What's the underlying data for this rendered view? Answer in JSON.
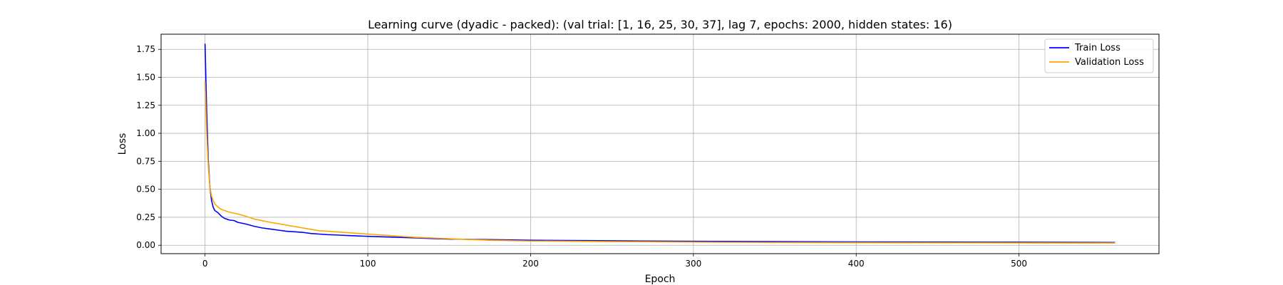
{
  "chart_data": {
    "type": "line",
    "title": "Learning curve (dyadic - packed): (val trial: [1, 16, 25, 30, 37], lag 7, epochs: 2000, hidden states: 16)",
    "xlabel": "Epoch",
    "ylabel": "Loss",
    "xlim": [
      -27,
      586
    ],
    "ylim": [
      -0.075,
      1.885
    ],
    "xticks": [
      0,
      100,
      200,
      300,
      400,
      500
    ],
    "yticks": [
      0.0,
      0.25,
      0.5,
      0.75,
      1.0,
      1.25,
      1.5,
      1.75
    ],
    "xtick_labels": [
      "0",
      "100",
      "200",
      "300",
      "400",
      "500"
    ],
    "ytick_labels": [
      "0.00",
      "0.25",
      "0.50",
      "0.75",
      "1.00",
      "1.25",
      "1.50",
      "1.75"
    ],
    "grid": true,
    "legend_position": "top-right",
    "series": [
      {
        "name": "Train Loss",
        "color": "#0000ff",
        "x": [
          0,
          1,
          2,
          3,
          4,
          5,
          6,
          8,
          10,
          12,
          15,
          18,
          20,
          25,
          30,
          35,
          40,
          45,
          50,
          55,
          60,
          65,
          70,
          75,
          80,
          90,
          100,
          110,
          120,
          130,
          140,
          150,
          175,
          200,
          250,
          300,
          350,
          400,
          450,
          500,
          559
        ],
        "y": [
          1.8,
          1.2,
          0.75,
          0.52,
          0.4,
          0.34,
          0.31,
          0.29,
          0.26,
          0.24,
          0.225,
          0.22,
          0.205,
          0.19,
          0.17,
          0.155,
          0.145,
          0.135,
          0.125,
          0.12,
          0.115,
          0.105,
          0.1,
          0.095,
          0.092,
          0.085,
          0.08,
          0.075,
          0.07,
          0.065,
          0.06,
          0.055,
          0.05,
          0.045,
          0.04,
          0.035,
          0.033,
          0.03,
          0.028,
          0.027,
          0.025
        ]
      },
      {
        "name": "Validation Loss",
        "color": "#ffa500",
        "x": [
          0,
          1,
          2,
          3,
          4,
          5,
          6,
          8,
          10,
          12,
          15,
          20,
          25,
          30,
          40,
          50,
          60,
          70,
          80,
          90,
          100,
          110,
          120,
          130,
          140,
          150,
          175,
          200,
          250,
          300,
          350,
          400,
          450,
          500,
          559
        ],
        "y": [
          1.46,
          1.0,
          0.7,
          0.52,
          0.44,
          0.4,
          0.37,
          0.34,
          0.32,
          0.31,
          0.295,
          0.28,
          0.26,
          0.235,
          0.205,
          0.18,
          0.155,
          0.13,
          0.12,
          0.11,
          0.1,
          0.09,
          0.08,
          0.07,
          0.065,
          0.058,
          0.045,
          0.038,
          0.033,
          0.028,
          0.025,
          0.023,
          0.022,
          0.021,
          0.02
        ]
      }
    ]
  }
}
